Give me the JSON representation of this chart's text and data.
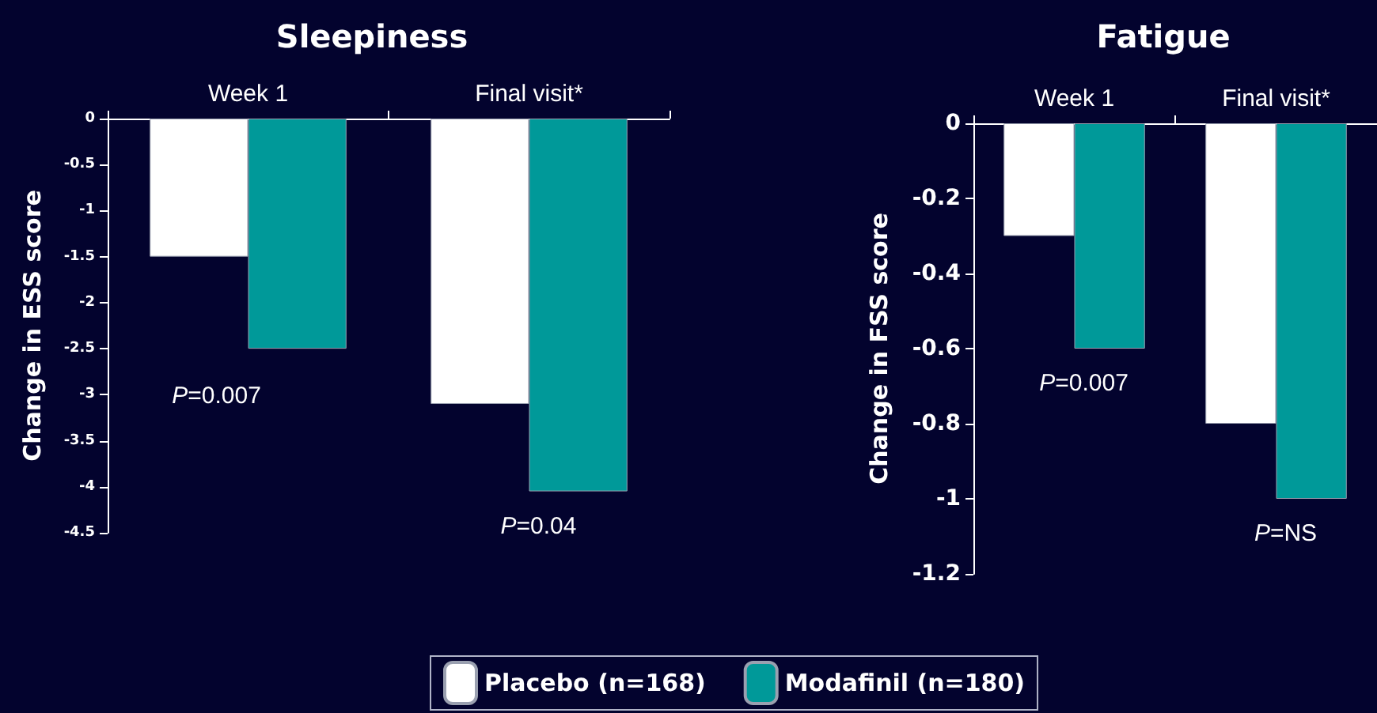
{
  "chart_data": [
    {
      "type": "bar",
      "title": "Sleepiness",
      "ylabel": "Change in ESS score",
      "categories": [
        "Week 1",
        "Final visit*"
      ],
      "series": [
        {
          "name": "Placebo (n=168)",
          "color": "#ffffff",
          "values": [
            -1.5,
            -3.1
          ]
        },
        {
          "name": "Modafinil (n=180)",
          "color": "#009999",
          "values": [
            -2.5,
            -4.05
          ]
        }
      ],
      "ylim": [
        -4.5,
        0
      ],
      "yticks": [
        -4.5,
        -4,
        -3.5,
        -3,
        -2.5,
        -2,
        -1.5,
        -1,
        -0.5,
        0
      ],
      "grid": false,
      "legend": "bottom",
      "annotations": [
        "P=0.007",
        "P=0.04"
      ]
    },
    {
      "type": "bar",
      "title": "Fatigue",
      "ylabel": "Change in FSS score",
      "categories": [
        "Week 1",
        "Final visit*"
      ],
      "series": [
        {
          "color": "#ffffff",
          "values": [
            -0.3,
            -0.8
          ]
        },
        {
          "color": "#009999",
          "values": [
            -0.6,
            -1.0
          ]
        }
      ],
      "ylim": [
        -1.2,
        0
      ],
      "yticks": [
        -1.2,
        -1,
        -0.8,
        -0.6,
        -0.4,
        -0.2,
        0
      ],
      "grid": false,
      "annotations": [
        "P=0.007",
        "P=NS"
      ]
    }
  ]
}
